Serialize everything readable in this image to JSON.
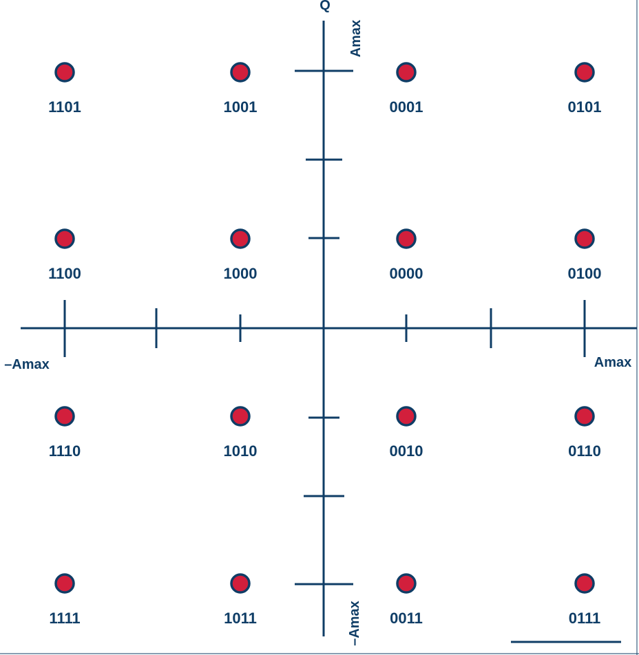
{
  "colors": {
    "axis": "#0f3d66",
    "point_fill": "#d21f3c",
    "point_stroke": "#0f3d66",
    "text": "#0f3d66"
  },
  "axes": {
    "vertical_label": "Q",
    "q_top_label": "Amax",
    "q_bottom_label": "–Amax",
    "i_left_label": "–Amax",
    "i_right_label": "Amax"
  },
  "constellation": {
    "rows": [
      [
        "1101",
        "1001",
        "0001",
        "0101"
      ],
      [
        "1100",
        "1000",
        "0000",
        "0100"
      ],
      [
        "1110",
        "1010",
        "0010",
        "0110"
      ],
      [
        "1111",
        "1011",
        "0011",
        "0111"
      ]
    ]
  }
}
